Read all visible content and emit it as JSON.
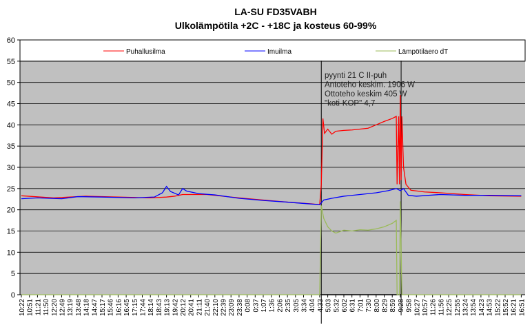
{
  "chart_data": {
    "type": "line",
    "title": "LA-SU FD35VABH",
    "subtitle": "Ulkolämpötila +2C - +18C ja kosteus 60-99%",
    "ylim": [
      0,
      60
    ],
    "yticks": [
      0,
      5,
      10,
      15,
      20,
      25,
      30,
      35,
      40,
      45,
      50,
      55,
      60
    ],
    "xlabels": [
      "10:22",
      "10:51",
      "11:21",
      "11:50",
      "12:20",
      "12:49",
      "13:19",
      "13:48",
      "14:18",
      "14:47",
      "15:17",
      "15:46",
      "16:16",
      "16:45",
      "17:15",
      "17:44",
      "18:14",
      "18:43",
      "19:13",
      "19:42",
      "20:12",
      "20:41",
      "21:11",
      "21:40",
      "22:10",
      "22:39",
      "23:09",
      "23:38",
      "0:08",
      "0:37",
      "1:07",
      "1:36",
      "2:06",
      "2:35",
      "3:05",
      "3:34",
      "4:04",
      "4:33",
      "5:03",
      "5:32",
      "6:02",
      "6:31",
      "7:01",
      "7:30",
      "8:00",
      "8:29",
      "8:59",
      "9:28",
      "9:58",
      "10:27",
      "10:57",
      "11:26",
      "11:56",
      "12:25",
      "12:55",
      "13:24",
      "13:54",
      "14:23",
      "14:53",
      "15:22",
      "15:52",
      "16:21",
      "16:51"
    ],
    "grid": true,
    "legend": "top",
    "series": [
      {
        "name": "Puhallusilma",
        "color": "#ff0000",
        "points": [
          [
            0,
            23.3
          ],
          [
            4,
            22.8
          ],
          [
            8,
            23.2
          ],
          [
            12,
            23
          ],
          [
            16,
            22.8
          ],
          [
            18,
            23
          ],
          [
            19,
            23.2
          ],
          [
            20,
            23.6
          ],
          [
            23,
            23.6
          ],
          [
            27,
            22.8
          ],
          [
            30,
            22.3
          ],
          [
            33,
            21.8
          ],
          [
            36,
            21.4
          ],
          [
            37,
            21.2
          ],
          [
            37.2,
            26
          ],
          [
            37.4,
            41.5
          ],
          [
            37.6,
            38
          ],
          [
            38,
            39
          ],
          [
            38.5,
            37.8
          ],
          [
            39,
            38.5
          ],
          [
            40,
            38.7
          ],
          [
            41,
            38.8
          ],
          [
            42,
            39
          ],
          [
            43,
            39.2
          ],
          [
            44,
            40
          ],
          [
            45,
            40.8
          ],
          [
            46,
            41.5
          ],
          [
            46.5,
            42
          ],
          [
            46.6,
            26
          ],
          [
            46.8,
            42
          ],
          [
            46.9,
            26
          ],
          [
            47,
            47
          ],
          [
            47.1,
            27
          ],
          [
            47.2,
            42
          ],
          [
            47.4,
            30
          ],
          [
            47.7,
            26
          ],
          [
            48.3,
            24.6
          ],
          [
            50,
            24.2
          ],
          [
            52,
            24
          ],
          [
            55,
            23.6
          ],
          [
            58,
            23.3
          ],
          [
            62,
            23.2
          ]
        ]
      },
      {
        "name": "Imuilma",
        "color": "#0000ff",
        "points": [
          [
            0,
            22.6
          ],
          [
            2,
            22.8
          ],
          [
            5,
            22.6
          ],
          [
            7,
            23.1
          ],
          [
            10,
            23
          ],
          [
            14,
            22.8
          ],
          [
            16.5,
            23
          ],
          [
            17.5,
            24
          ],
          [
            18,
            25.5
          ],
          [
            18.5,
            24.3
          ],
          [
            19.5,
            23.5
          ],
          [
            20,
            25
          ],
          [
            20.5,
            24.4
          ],
          [
            22,
            23.8
          ],
          [
            24,
            23.5
          ],
          [
            27,
            22.7
          ],
          [
            30,
            22.2
          ],
          [
            33,
            21.8
          ],
          [
            35,
            21.5
          ],
          [
            37,
            21.2
          ],
          [
            37.5,
            22.3
          ],
          [
            38.5,
            22.7
          ],
          [
            40,
            23.2
          ],
          [
            42,
            23.6
          ],
          [
            44,
            24
          ],
          [
            45.5,
            24.5
          ],
          [
            46.5,
            25
          ],
          [
            47,
            24.5
          ],
          [
            47.4,
            25
          ],
          [
            48,
            23.4
          ],
          [
            49,
            23.2
          ],
          [
            52,
            23.6
          ],
          [
            55,
            23.4
          ],
          [
            58,
            23.4
          ],
          [
            62,
            23.3
          ]
        ]
      },
      {
        "name": "Lämpötilaero dT",
        "color": "#9bbb59",
        "points": [
          [
            0,
            0
          ],
          [
            37,
            0
          ],
          [
            37.2,
            21
          ],
          [
            37.5,
            18
          ],
          [
            38,
            16
          ],
          [
            38.5,
            15
          ],
          [
            39,
            14.5
          ],
          [
            40,
            15.2
          ],
          [
            41,
            15
          ],
          [
            42,
            15.3
          ],
          [
            43,
            15.2
          ],
          [
            44,
            15.5
          ],
          [
            45,
            16
          ],
          [
            46,
            16.8
          ],
          [
            46.5,
            17.5
          ],
          [
            46.6,
            0
          ],
          [
            46.9,
            0
          ],
          [
            47,
            22
          ],
          [
            47.2,
            0
          ],
          [
            62,
            0
          ]
        ]
      }
    ],
    "annotation": [
      "pyynti 21 C II-puh",
      "Antoteho keskim. 1906 W",
      "Ottoteho keskim 405 W",
      "\"koti-KOP\" 4,7"
    ]
  }
}
